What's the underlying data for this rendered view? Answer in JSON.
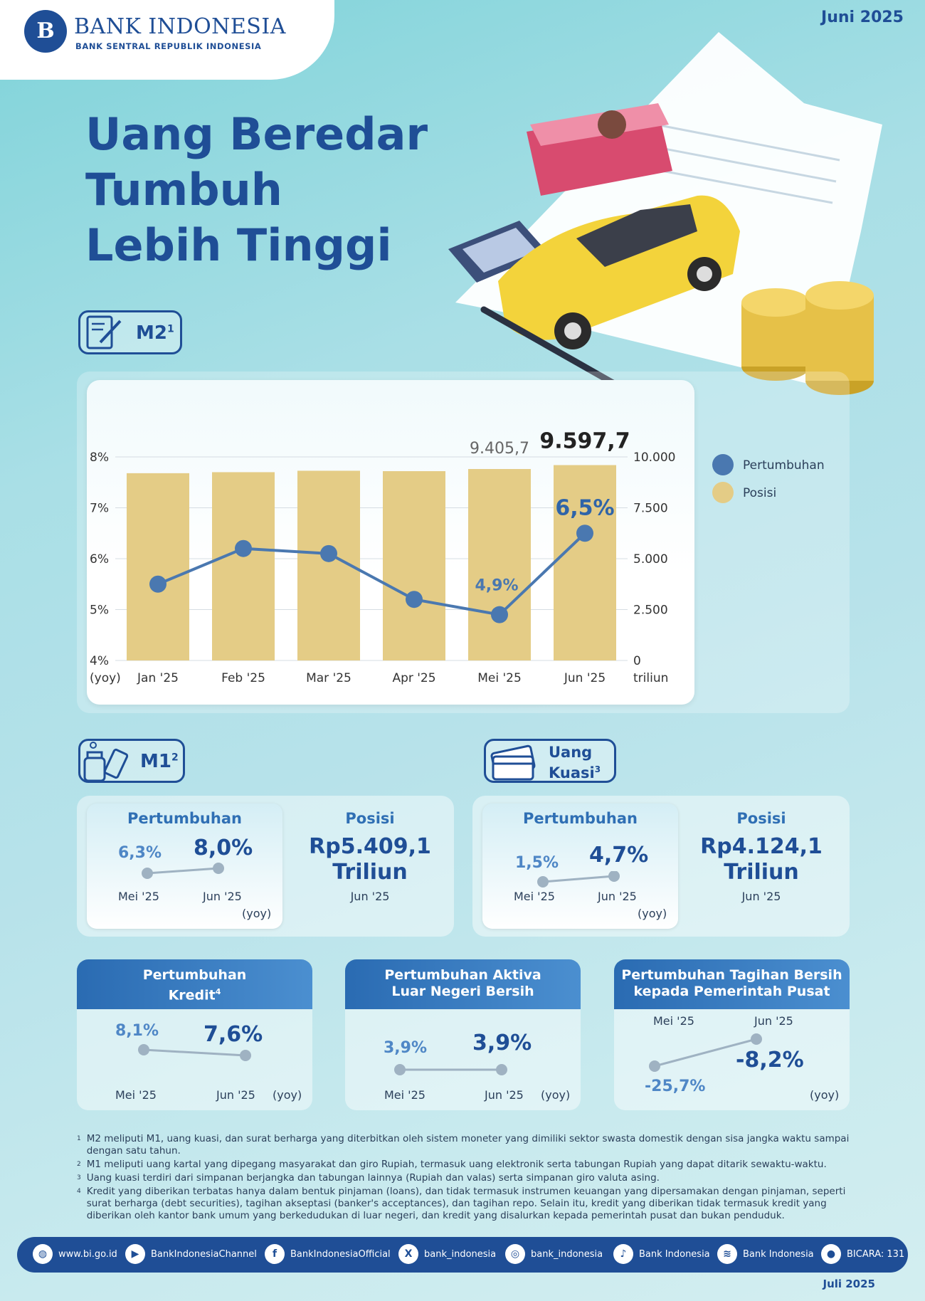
{
  "header": {
    "logo_mark": "B",
    "bank_name": "BANK INDONESIA",
    "bank_sub": "BANK SENTRAL REPUBLIK INDONESIA",
    "period": "Juni 2025"
  },
  "title": {
    "line1": "Uang Beredar Tumbuh",
    "line2": "Lebih Tinggi"
  },
  "m2": {
    "tag_label": "M2",
    "tag_sup": "1",
    "legend": [
      {
        "label": "Pertumbuhan",
        "color": "#4a78b0"
      },
      {
        "label": "Posisi",
        "color": "#e4cc86"
      }
    ]
  },
  "chart_data": {
    "type": "bar",
    "categories": [
      "Jan '25",
      "Feb '25",
      "Mar '25",
      "Apr '25",
      "Mei '25",
      "Jun '25"
    ],
    "series": [
      {
        "name": "Posisi",
        "type": "bar",
        "axis": "right",
        "values": [
          9200,
          9250,
          9320,
          9300,
          9405.7,
          9597.7
        ]
      },
      {
        "name": "Pertumbuhan",
        "type": "line",
        "axis": "left",
        "values": [
          5.5,
          6.2,
          6.1,
          5.2,
          4.9,
          6.5
        ]
      }
    ],
    "left_axis": {
      "unit": "(yoy)",
      "ticks": [
        "4%",
        "5%",
        "6%",
        "7%",
        "8%"
      ],
      "ylim": [
        4,
        8
      ]
    },
    "right_axis": {
      "unit": "triliun",
      "ticks": [
        "0",
        "2.500",
        "5.000",
        "7.500",
        "10.000"
      ],
      "ylim": [
        0,
        10000
      ]
    },
    "annotations": {
      "bar_mei": "9.405,7",
      "bar_jun": "9.597,7",
      "line_mei": "4,9%",
      "line_jun": "6,5%"
    },
    "bar_color": "#e4cc86",
    "line_color": "#4a78b0"
  },
  "m1": {
    "tag_label": "M1",
    "tag_sup": "2",
    "growth_title": "Pertumbuhan",
    "prev_value": "6,3%",
    "curr_value": "8,0%",
    "prev_label": "Mei '25",
    "curr_label": "Jun '25",
    "yoy": "(yoy)",
    "pos_title": "Posisi",
    "pos_value_1": "Rp5.409,1",
    "pos_value_2": "Triliun",
    "pos_label": "Jun '25"
  },
  "kuasi": {
    "tag_label_1": "Uang",
    "tag_label_2": "Kuasi",
    "tag_sup": "3",
    "growth_title": "Pertumbuhan",
    "prev_value": "1,5%",
    "curr_value": "4,7%",
    "prev_label": "Mei '25",
    "curr_label": "Jun '25",
    "yoy": "(yoy)",
    "pos_title": "Posisi",
    "pos_value_1": "Rp4.124,1",
    "pos_value_2": "Triliun",
    "pos_label": "Jun '25"
  },
  "kredit": {
    "head_1": "Pertumbuhan",
    "head_2": "Kredit",
    "head_sup": "4",
    "prev_value": "8,1%",
    "curr_value": "7,6%",
    "prev_label": "Mei '25",
    "curr_label": "Jun '25",
    "yoy": "(yoy)"
  },
  "aktiva": {
    "head_1": "Pertumbuhan Aktiva",
    "head_2": "Luar Negeri Bersih",
    "prev_value": "3,9%",
    "curr_value": "3,9%",
    "prev_label": "Mei '25",
    "curr_label": "Jun '25",
    "yoy": "(yoy)"
  },
  "tagihan": {
    "head_1": "Pertumbuhan Tagihan Bersih",
    "head_2": "kepada Pemerintah Pusat",
    "prev_value": "-25,7%",
    "curr_value": "-8,2%",
    "prev_label": "Mei '25",
    "curr_label": "Jun '25",
    "yoy": "(yoy)"
  },
  "footnotes": [
    {
      "num": "1",
      "text": "M2 meliputi M1, uang kuasi, dan surat berharga yang diterbitkan oleh sistem moneter yang dimiliki sektor swasta domestik dengan sisa jangka waktu sampai dengan satu tahun."
    },
    {
      "num": "2",
      "text": "M1 meliputi uang kartal yang dipegang masyarakat dan giro Rupiah, termasuk uang elektronik serta tabungan Rupiah yang dapat ditarik sewaktu-waktu."
    },
    {
      "num": "3",
      "text": "Uang kuasi terdiri dari simpanan berjangka dan tabungan lainnya (Rupiah dan valas) serta simpanan giro valuta asing."
    },
    {
      "num": "4",
      "text": "Kredit yang diberikan terbatas hanya dalam bentuk pinjaman (loans), dan tidak termasuk instrumen keuangan yang dipersamakan dengan pinjaman, seperti surat berharga (debt securities), tagihan akseptasi (banker's acceptances), dan tagihan repo. Selain itu, kredit yang diberikan tidak termasuk kredit yang diberikan oleh kantor bank umum yang berkedudukan di luar negeri, dan kredit yang disalurkan kepada pemerintah pusat dan bukan penduduk."
    }
  ],
  "footer": {
    "social": [
      {
        "icon": "globe-icon",
        "glyph": "◍",
        "label": "www.bi.go.id"
      },
      {
        "icon": "youtube-icon",
        "glyph": "▶",
        "label": "BankIndonesiaChannel"
      },
      {
        "icon": "facebook-icon",
        "glyph": "f",
        "label": "BankIndonesiaOfficial"
      },
      {
        "icon": "x-icon",
        "glyph": "X",
        "label": "bank_indonesia"
      },
      {
        "icon": "instagram-icon",
        "glyph": "◎",
        "label": "bank_indonesia"
      },
      {
        "icon": "tiktok-icon",
        "glyph": "♪",
        "label": "Bank Indonesia"
      },
      {
        "icon": "spotify-icon",
        "glyph": "≋",
        "label": "Bank Indonesia"
      },
      {
        "icon": "bicara-icon",
        "glyph": "●",
        "label": "BICARA: 131"
      }
    ],
    "release": "Juli 2025"
  }
}
